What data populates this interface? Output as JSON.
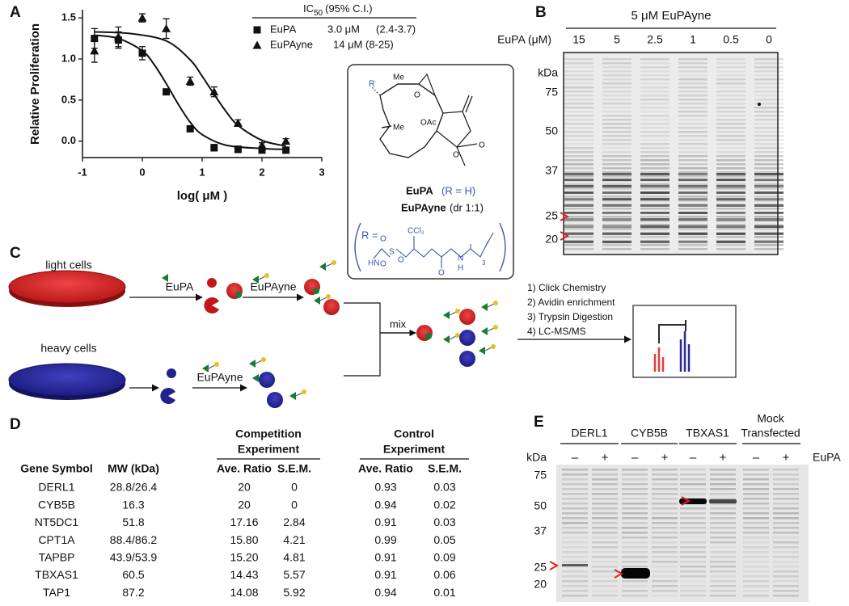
{
  "panel_labels": [
    "A",
    "B",
    "C",
    "D",
    "E"
  ],
  "chart_data": {
    "type": "scatter",
    "ylabel": "Relative Proliferation",
    "xlabel": "log( μM )",
    "xlim": [
      -1,
      3
    ],
    "xticks": [
      -1,
      0,
      1,
      2,
      3
    ],
    "ylim": [
      -0.2,
      1.6
    ],
    "yticks": [
      {
        "value": 0,
        "label": "0.0"
      },
      0.5,
      {
        "value": 1,
        "label": "1.0"
      },
      1.5
    ],
    "legend_title": {
      "main": "IC",
      "sub": "50",
      "rest": "(95% C.I.)"
    },
    "series": [
      {
        "name": "EuPA",
        "marker": "square",
        "color": "#111111",
        "ic50": "3.0 μM",
        "ci": "(2.4-3.7)",
        "x": [
          -0.8,
          -0.4,
          0,
          0.4,
          0.8,
          1.2,
          1.6,
          2.0,
          2.4
        ],
        "values": [
          1.25,
          1.23,
          1.07,
          0.6,
          0.15,
          -0.08,
          -0.1,
          -0.11,
          -0.11
        ],
        "errors": [
          0.12,
          0.1,
          0.08,
          0.03,
          0.03,
          0.04,
          0.04,
          0.03,
          0.02
        ],
        "curve_x": [
          -0.8,
          -0.4,
          0,
          0.2,
          0.4,
          0.6,
          0.8,
          1.0,
          1.4,
          2.0,
          2.4
        ],
        "curve_y": [
          1.29,
          1.25,
          1.1,
          0.93,
          0.7,
          0.45,
          0.23,
          0.08,
          -0.05,
          -0.09,
          -0.1
        ]
      },
      {
        "name": "EuPAyne",
        "marker": "triangle",
        "color": "#111111",
        "ic50": "14 μM",
        "ci": "(8-25)",
        "x": [
          -0.8,
          -0.4,
          0,
          0.4,
          0.8,
          1.2,
          1.6,
          2.0,
          2.4
        ],
        "values": [
          1.1,
          1.27,
          1.5,
          1.37,
          0.73,
          0.6,
          0.22,
          -0.05,
          0.0
        ],
        "errors": [
          0.14,
          0.12,
          0.05,
          0.12,
          0.05,
          0.06,
          0.04,
          0.03,
          0.03
        ],
        "curve_x": [
          -0.8,
          -0.2,
          0.4,
          0.8,
          1.0,
          1.2,
          1.4,
          1.6,
          2.0,
          2.4
        ],
        "curve_y": [
          1.33,
          1.31,
          1.22,
          0.99,
          0.79,
          0.57,
          0.36,
          0.19,
          0.01,
          -0.06
        ]
      }
    ]
  },
  "structure": {
    "r": "R",
    "me_top": "Me",
    "o_epoxide": "O",
    "me_left": "Me",
    "oac": "OAc",
    "o_ring": "O",
    "o_carbonyl": "O",
    "eupa": "EuPA",
    "eupa_r": "(R = H)",
    "eupayne": "EuPAyne",
    "eupayne_dr": "(dr 1:1)",
    "r_def": "R =",
    "ccl3": "CCl₃",
    "o_s1": "O",
    "s": "S",
    "o_s2": "O",
    "hn": "HN",
    "o_ester": "O",
    "o_amide": "O",
    "n": "N",
    "h": "H",
    "n3": "3"
  },
  "gel_b": {
    "title": "5 μM EuPAyne",
    "lane_axis": "EuPA (μM)",
    "lanes": [
      "15",
      "5",
      "2.5",
      "1",
      "0.5",
      "0"
    ],
    "kda": "kDa",
    "markers": [
      "75",
      "50",
      "37",
      "25",
      "20"
    ]
  },
  "scheme_c": {
    "light": "light cells",
    "heavy": "heavy cells",
    "eupa": "EuPA",
    "eupayne_light": "EuPAyne",
    "eupayne_heavy": "EuPAyne",
    "mix": "mix",
    "steps": [
      "1) Click Chemistry",
      "2) Avidin enrichment",
      "3) Trypsin Digestion",
      "4) LC-MS/MS"
    ]
  },
  "table_d": {
    "group_headers": [
      [
        "Competition",
        "Experiment"
      ],
      [
        "Control",
        "Experiment"
      ]
    ],
    "columns": [
      "Gene Symbol",
      "MW (kDa)",
      "Ave. Ratio",
      "S.E.M.",
      "Ave. Ratio",
      "S.E.M."
    ],
    "rows": [
      [
        "DERL1",
        "28.8/26.4",
        "20",
        "0",
        "0.93",
        "0.03"
      ],
      [
        "CYB5B",
        "16.3",
        "20",
        "0",
        "0.94",
        "0.02"
      ],
      [
        "NT5DC1",
        "51.8",
        "17.16",
        "2.84",
        "0.91",
        "0.03"
      ],
      [
        "CPT1A",
        "88.4/86.2",
        "15.80",
        "4.21",
        "0.99",
        "0.05"
      ],
      [
        "TAPBP",
        "43.9/53.9",
        "15.20",
        "4.81",
        "0.91",
        "0.09"
      ],
      [
        "TBXAS1",
        "60.5",
        "14.43",
        "5.57",
        "0.91",
        "0.06"
      ],
      [
        "TAP1",
        "87.2",
        "14.08",
        "5.92",
        "0.94",
        "0.01"
      ]
    ]
  },
  "gel_e": {
    "groups": [
      [
        "DERL1"
      ],
      [
        "CYB5B"
      ],
      [
        "TBXAS1"
      ],
      [
        "Mock",
        "Transfected"
      ]
    ],
    "signs": [
      "–",
      "+",
      "–",
      "+",
      "–",
      "+",
      "–",
      "+"
    ],
    "treatment": "EuPA",
    "kda": "kDa",
    "markers": [
      "75",
      "50",
      "37",
      "25",
      "20"
    ]
  }
}
